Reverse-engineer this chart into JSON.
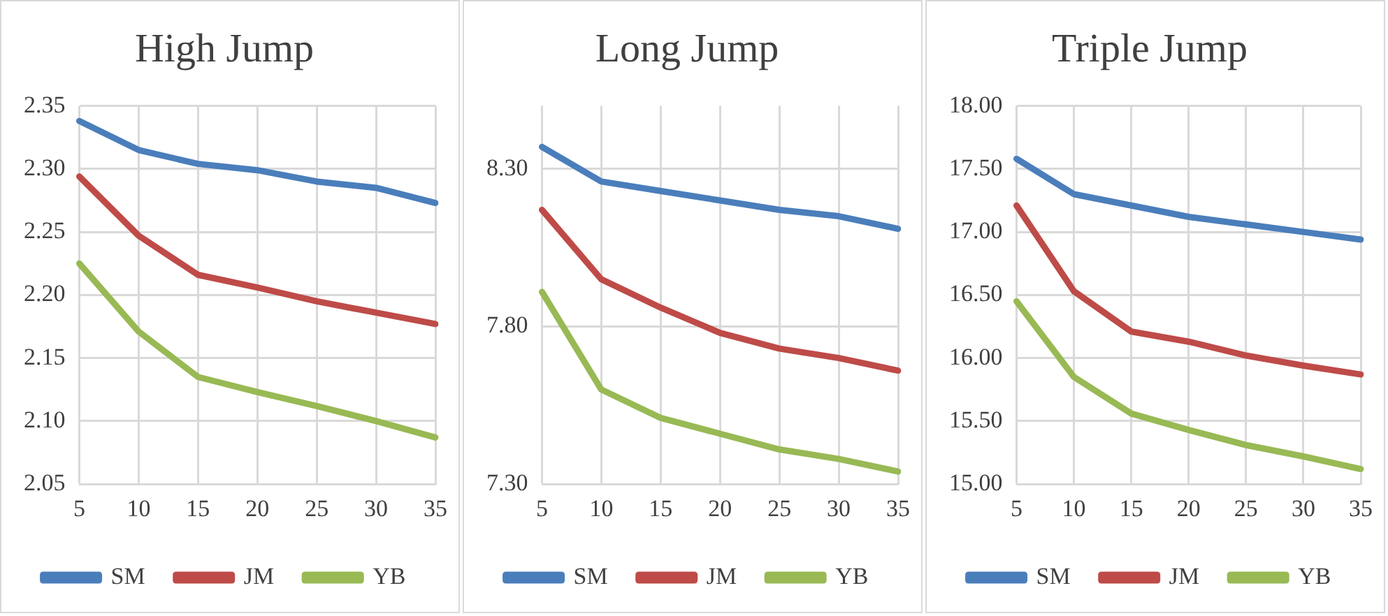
{
  "chart_data": [
    {
      "type": "line",
      "title": "High Jump",
      "categories": [
        "5",
        "10",
        "15",
        "20",
        "25",
        "30",
        "35"
      ],
      "series": [
        {
          "name": "SM",
          "color": "#4a7ebb",
          "values": [
            2.338,
            2.315,
            2.304,
            2.299,
            2.29,
            2.285,
            2.273
          ]
        },
        {
          "name": "JM",
          "color": "#be4b48",
          "values": [
            2.294,
            2.247,
            2.216,
            2.206,
            2.195,
            2.186,
            2.177
          ]
        },
        {
          "name": "YB",
          "color": "#98b954",
          "values": [
            2.225,
            2.171,
            2.135,
            2.123,
            2.112,
            2.1,
            2.087
          ]
        }
      ],
      "ylim": [
        2.05,
        2.35
      ],
      "yticks": [
        2.05,
        {
          "value": 2.1,
          "label": "2.10"
        },
        2.15,
        {
          "value": 2.2,
          "label": "2.20"
        },
        2.25,
        {
          "value": 2.3,
          "label": "2.30"
        },
        2.35
      ],
      "grid": true,
      "legend": "bottom",
      "marker": "none"
    },
    {
      "type": "line",
      "title": "Long Jump",
      "categories": [
        "5",
        "10",
        "15",
        "20",
        "25",
        "30",
        "35"
      ],
      "series": [
        {
          "name": "SM",
          "color": "#4a7ebb",
          "values": [
            8.37,
            8.26,
            8.23,
            8.2,
            8.17,
            8.15,
            8.11
          ]
        },
        {
          "name": "JM",
          "color": "#be4b48",
          "values": [
            8.17,
            7.95,
            7.86,
            7.78,
            7.73,
            7.7,
            7.66
          ]
        },
        {
          "name": "YB",
          "color": "#98b954",
          "values": [
            7.91,
            7.6,
            7.51,
            7.46,
            7.41,
            7.38,
            7.34
          ]
        }
      ],
      "ylim": [
        7.3,
        8.5
      ],
      "yticks": [
        {
          "value": 7.3,
          "label": "7.30"
        },
        {
          "value": 7.8,
          "label": "7.80"
        },
        {
          "value": 8.3,
          "label": "8.30"
        }
      ],
      "grid": true,
      "legend": "bottom",
      "marker": "none"
    },
    {
      "type": "line",
      "title": "Triple Jump",
      "categories": [
        "5",
        "10",
        "15",
        "20",
        "25",
        "30",
        "35"
      ],
      "series": [
        {
          "name": "SM",
          "color": "#4a7ebb",
          "values": [
            17.58,
            17.3,
            17.21,
            17.12,
            17.06,
            17.0,
            16.94
          ]
        },
        {
          "name": "JM",
          "color": "#be4b48",
          "values": [
            17.21,
            16.53,
            16.21,
            16.13,
            16.02,
            15.94,
            15.87
          ]
        },
        {
          "name": "YB",
          "color": "#98b954",
          "values": [
            16.45,
            15.85,
            15.56,
            15.43,
            15.31,
            15.22,
            15.12
          ]
        }
      ],
      "ylim": [
        15,
        18
      ],
      "yticks": [
        {
          "value": 15,
          "label": "15.00"
        },
        {
          "value": 15.5,
          "label": "15.50"
        },
        {
          "value": 16,
          "label": "16.00"
        },
        {
          "value": 16.5,
          "label": "16.50"
        },
        {
          "value": 17,
          "label": "17.00"
        },
        {
          "value": 17.5,
          "label": "17.50"
        },
        {
          "value": 18,
          "label": "18.00"
        }
      ],
      "grid": true,
      "legend": "bottom",
      "marker": "none"
    }
  ]
}
